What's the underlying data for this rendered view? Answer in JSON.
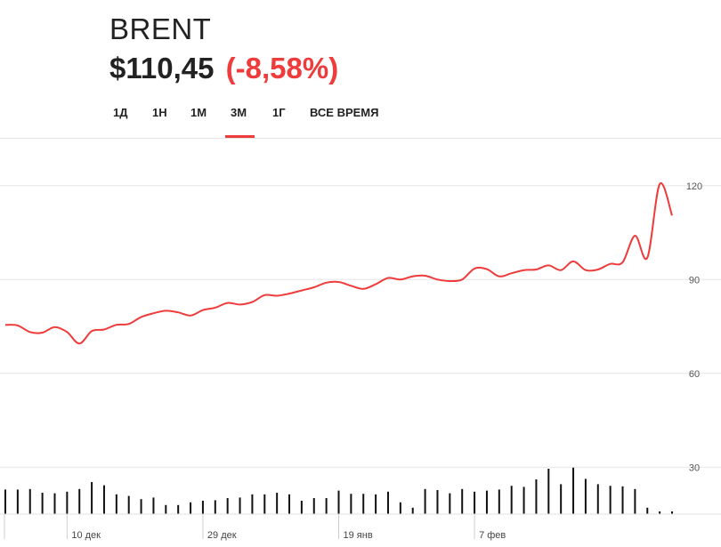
{
  "header": {
    "ticker": "BRENT",
    "price": "$110,45",
    "change": "(-8,58%)"
  },
  "tabs": [
    {
      "label": "1Д",
      "active": false
    },
    {
      "label": "1Н",
      "active": false
    },
    {
      "label": "1М",
      "active": false
    },
    {
      "label": "3М",
      "active": true
    },
    {
      "label": "1Г",
      "active": false
    },
    {
      "label": "ВСЕ ВРЕМЯ",
      "active": false
    }
  ],
  "colors": {
    "accent": "#ee3b3b",
    "line": "#ee3b3b",
    "volume": "#111111",
    "grid": "#e6e6e6"
  },
  "chart_data": {
    "type": "line",
    "title": "",
    "xlabel": "",
    "ylabel": "",
    "ylim": [
      15,
      135
    ],
    "y_ticks": [
      30,
      60,
      90,
      120
    ],
    "x_ticks": [
      {
        "index": 5,
        "label": "10 дек"
      },
      {
        "index": 16,
        "label": "29 дек"
      },
      {
        "index": 27,
        "label": "19 янв"
      },
      {
        "index": 38,
        "label": "7 фев"
      }
    ],
    "grid": true,
    "series": [
      {
        "values": [
          75.5,
          75.3,
          73.2,
          73.0,
          74.8,
          73.2,
          69.5,
          73.5,
          74.0,
          75.5,
          75.8,
          78.0,
          79.2,
          80.0,
          79.5,
          78.5,
          80.2,
          81.0,
          82.5,
          82.0,
          82.8,
          85.0,
          84.8,
          85.5,
          86.5,
          87.5,
          89.0,
          89.2,
          88.0,
          87.0,
          88.5,
          90.5,
          90.0,
          91.0,
          91.2,
          90.0,
          89.5,
          90.0,
          93.5,
          93.3,
          91.0,
          92.0,
          93.0,
          93.2,
          94.5,
          93.0,
          95.8,
          93.0,
          93.2,
          95.0,
          95.5,
          104.0,
          97.0,
          120.5,
          110.5
        ]
      }
    ],
    "volume": [
      0.46,
      0.46,
      0.47,
      0.4,
      0.39,
      0.42,
      0.47,
      0.6,
      0.54,
      0.37,
      0.34,
      0.28,
      0.31,
      0.17,
      0.17,
      0.22,
      0.25,
      0.26,
      0.3,
      0.31,
      0.37,
      0.37,
      0.4,
      0.37,
      0.25,
      0.3,
      0.3,
      0.44,
      0.38,
      0.38,
      0.37,
      0.42,
      0.22,
      0.12,
      0.47,
      0.45,
      0.39,
      0.47,
      0.42,
      0.44,
      0.46,
      0.53,
      0.51,
      0.65,
      0.85,
      0.56,
      0.87,
      0.66,
      0.56,
      0.53,
      0.52,
      0.47,
      0.12,
      0.05,
      0.05
    ]
  }
}
